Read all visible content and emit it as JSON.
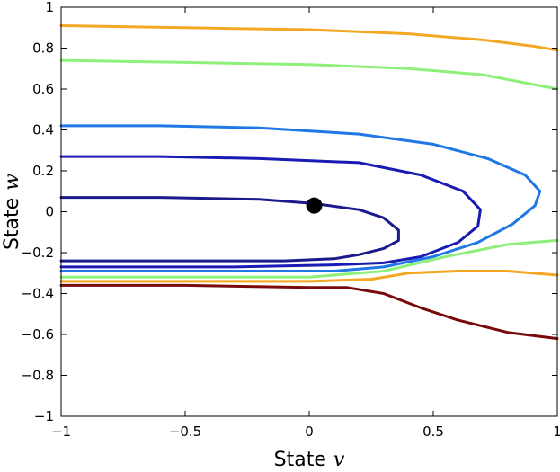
{
  "chart_data": {
    "type": "line",
    "title": "",
    "xlabel": {
      "prefix": "State",
      "symbol": "v"
    },
    "ylabel": {
      "prefix": "State",
      "symbol": "w"
    },
    "xlim": [
      -1,
      1
    ],
    "ylim": [
      -1,
      1
    ],
    "xticks": [
      -1,
      -0.5,
      0,
      0.5,
      1
    ],
    "yticks": [
      -1,
      -0.8,
      -0.6,
      -0.4,
      -0.2,
      0,
      0.2,
      0.4,
      0.6,
      0.8,
      1
    ],
    "xtick_labels": [
      "−1",
      "−0.5",
      "0",
      "0.5",
      "1"
    ],
    "ytick_labels": [
      "−1",
      "−0.8",
      "−0.6",
      "−0.4",
      "−0.2",
      "0",
      "0.2",
      "0.4",
      "0.6",
      "0.8",
      "1"
    ],
    "grid": false,
    "legend": "none",
    "marker": {
      "x": 0.02,
      "y": 0.03,
      "color": "#000000"
    },
    "series": [
      {
        "color": "#1a1a8c",
        "points": [
          [
            -1,
            0.07
          ],
          [
            -0.6,
            0.07
          ],
          [
            -0.2,
            0.06
          ],
          [
            0.02,
            0.04
          ],
          [
            0.2,
            0.01
          ],
          [
            0.3,
            -0.03
          ],
          [
            0.36,
            -0.09
          ],
          [
            0.36,
            -0.14
          ],
          [
            0.3,
            -0.18
          ],
          [
            0.2,
            -0.21
          ],
          [
            0.1,
            -0.23
          ],
          [
            -0.1,
            -0.24
          ],
          [
            -0.6,
            -0.24
          ],
          [
            -1,
            -0.24
          ]
        ]
      },
      {
        "color": "#1a1ab4",
        "points": [
          [
            -1,
            0.27
          ],
          [
            -0.6,
            0.27
          ],
          [
            -0.2,
            0.26
          ],
          [
            0.2,
            0.24
          ],
          [
            0.45,
            0.18
          ],
          [
            0.62,
            0.1
          ],
          [
            0.69,
            0.01
          ],
          [
            0.68,
            -0.07
          ],
          [
            0.6,
            -0.15
          ],
          [
            0.45,
            -0.22
          ],
          [
            0.3,
            -0.25
          ],
          [
            0.1,
            -0.26
          ],
          [
            -0.3,
            -0.27
          ],
          [
            -1,
            -0.27
          ]
        ]
      },
      {
        "color": "#1f78e6",
        "points": [
          [
            -1,
            0.42
          ],
          [
            -0.6,
            0.42
          ],
          [
            -0.2,
            0.41
          ],
          [
            0.2,
            0.38
          ],
          [
            0.5,
            0.33
          ],
          [
            0.72,
            0.26
          ],
          [
            0.87,
            0.18
          ],
          [
            0.93,
            0.1
          ],
          [
            0.91,
            0.03
          ],
          [
            0.82,
            -0.06
          ],
          [
            0.68,
            -0.15
          ],
          [
            0.5,
            -0.22
          ],
          [
            0.3,
            -0.27
          ],
          [
            0.1,
            -0.29
          ],
          [
            -0.3,
            -0.29
          ],
          [
            -1,
            -0.29
          ]
        ]
      },
      {
        "color": "#8ef07a",
        "points": [
          [
            -1,
            0.74
          ],
          [
            -0.5,
            0.73
          ],
          [
            0,
            0.72
          ],
          [
            0.4,
            0.7
          ],
          [
            0.7,
            0.67
          ],
          [
            1,
            0.6
          ]
        ]
      },
      {
        "color": "#8ef07a",
        "points": [
          [
            -1,
            -0.32
          ],
          [
            -0.5,
            -0.32
          ],
          [
            0,
            -0.32
          ],
          [
            0.3,
            -0.29
          ],
          [
            0.55,
            -0.22
          ],
          [
            0.8,
            -0.16
          ],
          [
            1,
            -0.14
          ]
        ]
      },
      {
        "color": "#f5a623",
        "points": [
          [
            -1,
            0.91
          ],
          [
            -0.5,
            0.9
          ],
          [
            0,
            0.89
          ],
          [
            0.4,
            0.87
          ],
          [
            0.7,
            0.84
          ],
          [
            0.9,
            0.81
          ],
          [
            1,
            0.79
          ]
        ]
      },
      {
        "color": "#f5a623",
        "points": [
          [
            -1,
            -0.34
          ],
          [
            -0.5,
            -0.34
          ],
          [
            0,
            -0.34
          ],
          [
            0.25,
            -0.33
          ],
          [
            0.4,
            -0.3
          ],
          [
            0.6,
            -0.29
          ],
          [
            0.8,
            -0.29
          ],
          [
            1,
            -0.31
          ]
        ]
      },
      {
        "color": "#7a0a0a",
        "points": [
          [
            -1,
            -0.36
          ],
          [
            -0.5,
            -0.36
          ],
          [
            0,
            -0.37
          ],
          [
            0.15,
            -0.37
          ],
          [
            0.3,
            -0.4
          ],
          [
            0.45,
            -0.47
          ],
          [
            0.6,
            -0.53
          ],
          [
            0.8,
            -0.59
          ],
          [
            1,
            -0.62
          ]
        ]
      }
    ]
  }
}
